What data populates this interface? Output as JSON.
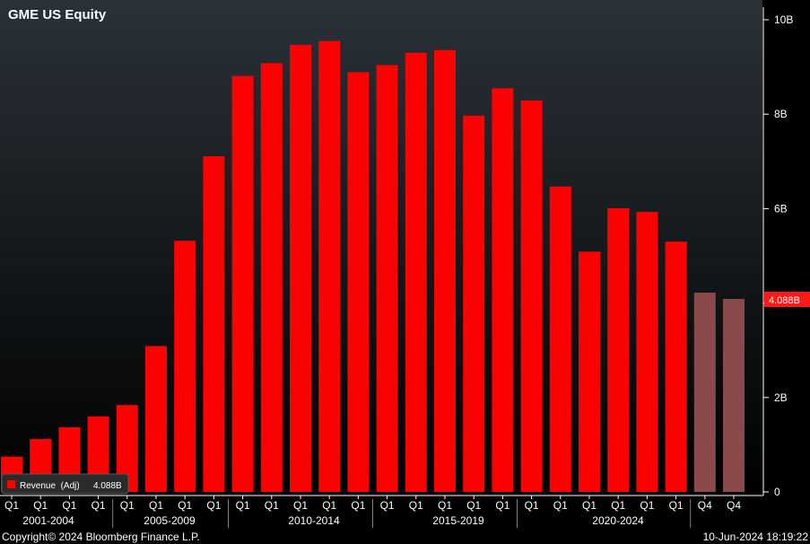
{
  "title": "GME US Equity",
  "colors": {
    "bar": "#ff0000",
    "bar_estimate": "#8b4a4a",
    "background_top": "#2a3238",
    "background_bottom": "#000000",
    "callout": "#ff1a1a"
  },
  "chart_data": {
    "type": "bar",
    "categories": [
      "Q1",
      "Q1",
      "Q1",
      "Q1",
      "Q1",
      "Q1",
      "Q1",
      "Q1",
      "Q1",
      "Q1",
      "Q1",
      "Q1",
      "Q1",
      "Q1",
      "Q1",
      "Q1",
      "Q1",
      "Q1",
      "Q1",
      "Q1",
      "Q1",
      "Q1",
      "Q1",
      "Q1",
      "Q4",
      "Q4"
    ],
    "period_groups": [
      "2001-2004",
      "2005-2009",
      "2010-2014",
      "2015-2019",
      "2020-2024"
    ],
    "series": [
      {
        "name": "Revenue  (Adj)",
        "values": [
          0.75,
          1.12,
          1.37,
          1.6,
          1.84,
          3.09,
          5.32,
          7.11,
          8.81,
          9.08,
          9.47,
          9.55,
          8.89,
          9.04,
          9.3,
          9.36,
          7.97,
          8.55,
          8.29,
          6.47,
          5.09,
          6.01,
          5.93,
          5.3,
          4.22,
          4.088
        ],
        "estimate_flags": [
          false,
          false,
          false,
          false,
          false,
          false,
          false,
          false,
          false,
          false,
          false,
          false,
          false,
          false,
          false,
          false,
          false,
          false,
          false,
          false,
          false,
          false,
          false,
          false,
          true,
          true
        ]
      }
    ],
    "ylim": [
      0,
      10
    ],
    "yticks": [
      0,
      2,
      4,
      6,
      8,
      10
    ],
    "ytick_labels": [
      "0",
      "2B",
      "",
      "6B",
      "8B",
      "10B"
    ],
    "last_value_label": "4.088B",
    "legend": {
      "series_label": "Revenue  (Adj)",
      "value": "4.088B",
      "placement": "bottom-left"
    },
    "grid": false
  },
  "footer": {
    "copyright": "Copyright© 2024 Bloomberg Finance L.P.",
    "timestamp": "10-Jun-2024 18:19:22"
  }
}
